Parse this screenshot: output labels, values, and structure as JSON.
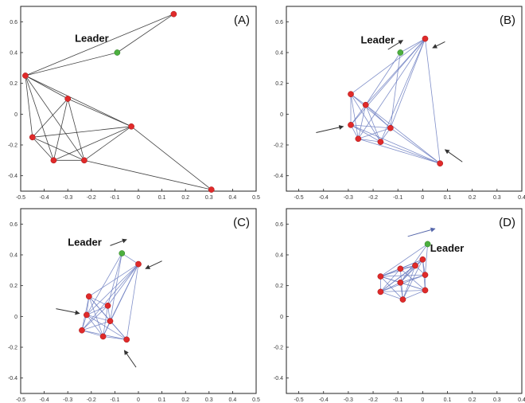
{
  "chart_data": [
    {
      "type": "scatter",
      "panel": "(A)",
      "leader_label": "Leader",
      "xlim": [
        -0.5,
        0.5
      ],
      "ylim": [
        -0.5,
        0.7
      ],
      "xticks": [
        "-0.5",
        "-0.4",
        "-0.3",
        "-0.2",
        "-0.1",
        "0",
        "0.1",
        "0.2",
        "0.3",
        "0.4",
        "0.5"
      ],
      "yticks": [
        "-0.4",
        "-0.2",
        "0",
        "0.2",
        "0.4",
        "0.6"
      ],
      "edge_color": "#222222",
      "leader": [
        -0.09,
        0.4
      ],
      "leader_label_pos": [
        -0.27,
        0.47
      ],
      "points": [
        [
          0.15,
          0.65
        ],
        [
          -0.48,
          0.25
        ],
        [
          -0.3,
          0.1
        ],
        [
          -0.03,
          -0.08
        ],
        [
          -0.45,
          -0.15
        ],
        [
          -0.36,
          -0.3
        ],
        [
          -0.23,
          -0.3
        ],
        [
          0.31,
          -0.49
        ]
      ],
      "edges": [
        [
          0,
          1
        ],
        [
          0,
          8
        ],
        [
          1,
          8
        ],
        [
          1,
          2
        ],
        [
          1,
          3
        ],
        [
          1,
          5
        ],
        [
          1,
          6
        ],
        [
          1,
          4
        ],
        [
          2,
          3
        ],
        [
          2,
          5
        ],
        [
          2,
          6
        ],
        [
          2,
          4
        ],
        [
          3,
          4
        ],
        [
          3,
          5
        ],
        [
          3,
          6
        ],
        [
          3,
          7
        ],
        [
          4,
          5
        ],
        [
          4,
          6
        ],
        [
          5,
          6
        ],
        [
          6,
          7
        ]
      ],
      "arrows": []
    },
    {
      "type": "scatter",
      "panel": "(B)",
      "leader_label": "Leader",
      "xlim": [
        -0.55,
        0.4
      ],
      "ylim": [
        -0.5,
        0.7
      ],
      "xticks": [
        "-0.5",
        "-0.4",
        "-0.3",
        "-0.2",
        "-0.1",
        "0",
        "0.1",
        "0.2",
        "0.3",
        "0.4"
      ],
      "yticks": [
        "-0.4",
        "-0.2",
        "0",
        "0.2",
        "0.4",
        "0.6"
      ],
      "edge_color": "#6a7bc0",
      "leader": [
        -0.09,
        0.4
      ],
      "leader_label_pos": [
        -0.25,
        0.46
      ],
      "points": [
        [
          0.01,
          0.49
        ],
        [
          -0.29,
          0.13
        ],
        [
          -0.23,
          0.06
        ],
        [
          -0.29,
          -0.07
        ],
        [
          -0.13,
          -0.09
        ],
        [
          -0.26,
          -0.16
        ],
        [
          -0.17,
          -0.18
        ],
        [
          0.07,
          -0.32
        ]
      ],
      "edges": [
        [
          0,
          1
        ],
        [
          0,
          2
        ],
        [
          0,
          3
        ],
        [
          0,
          4
        ],
        [
          0,
          5
        ],
        [
          0,
          6
        ],
        [
          0,
          7
        ],
        [
          0,
          8
        ],
        [
          1,
          2
        ],
        [
          1,
          3
        ],
        [
          1,
          4
        ],
        [
          1,
          5
        ],
        [
          1,
          6
        ],
        [
          2,
          3
        ],
        [
          2,
          4
        ],
        [
          2,
          5
        ],
        [
          2,
          6
        ],
        [
          2,
          7
        ],
        [
          3,
          4
        ],
        [
          3,
          5
        ],
        [
          3,
          6
        ],
        [
          3,
          7
        ],
        [
          4,
          5
        ],
        [
          4,
          6
        ],
        [
          4,
          7
        ],
        [
          5,
          6
        ],
        [
          5,
          7
        ],
        [
          6,
          7
        ],
        [
          8,
          2
        ],
        [
          8,
          4
        ]
      ],
      "arrows": [
        [
          [
            -0.14,
            0.42
          ],
          [
            -0.08,
            0.48
          ]
        ],
        [
          [
            0.09,
            0.47
          ],
          [
            0.04,
            0.43
          ]
        ],
        [
          [
            -0.43,
            -0.12
          ],
          [
            -0.32,
            -0.08
          ]
        ],
        [
          [
            0.16,
            -0.31
          ],
          [
            0.09,
            -0.23
          ]
        ]
      ]
    },
    {
      "type": "scatter",
      "panel": "(C)",
      "leader_label": "Leader",
      "xlim": [
        -0.5,
        0.5
      ],
      "ylim": [
        -0.5,
        0.7
      ],
      "xticks": [
        "-0.5",
        "-0.4",
        "-0.3",
        "-0.2",
        "-0.1",
        "0",
        "0.1",
        "0.2",
        "0.3",
        "0.4",
        "0.5"
      ],
      "yticks": [
        "-0.4",
        "-0.2",
        "0",
        "0.2",
        "0.4",
        "0.6"
      ],
      "edge_color": "#6a7bc0",
      "leader": [
        -0.07,
        0.41
      ],
      "leader_label_pos": [
        -0.3,
        0.46
      ],
      "points": [
        [
          0.0,
          0.34
        ],
        [
          -0.21,
          0.13
        ],
        [
          -0.22,
          0.01
        ],
        [
          -0.13,
          0.07
        ],
        [
          -0.12,
          -0.03
        ],
        [
          -0.24,
          -0.09
        ],
        [
          -0.15,
          -0.13
        ],
        [
          -0.05,
          -0.15
        ]
      ],
      "edges": [
        [
          0,
          1
        ],
        [
          0,
          2
        ],
        [
          0,
          3
        ],
        [
          0,
          4
        ],
        [
          0,
          5
        ],
        [
          0,
          6
        ],
        [
          0,
          7
        ],
        [
          0,
          8
        ],
        [
          1,
          2
        ],
        [
          1,
          3
        ],
        [
          1,
          4
        ],
        [
          1,
          5
        ],
        [
          1,
          6
        ],
        [
          1,
          7
        ],
        [
          2,
          3
        ],
        [
          2,
          4
        ],
        [
          2,
          5
        ],
        [
          2,
          6
        ],
        [
          2,
          7
        ],
        [
          3,
          4
        ],
        [
          3,
          5
        ],
        [
          3,
          6
        ],
        [
          4,
          5
        ],
        [
          4,
          6
        ],
        [
          4,
          7
        ],
        [
          5,
          6
        ],
        [
          5,
          7
        ],
        [
          6,
          7
        ],
        [
          8,
          2
        ],
        [
          8,
          3
        ],
        [
          8,
          4
        ]
      ],
      "arrows": [
        [
          [
            -0.12,
            0.46
          ],
          [
            -0.05,
            0.5
          ]
        ],
        [
          [
            0.1,
            0.36
          ],
          [
            0.03,
            0.31
          ]
        ],
        [
          [
            -0.35,
            0.05
          ],
          [
            -0.25,
            0.02
          ]
        ],
        [
          [
            -0.01,
            -0.33
          ],
          [
            -0.06,
            -0.22
          ]
        ]
      ]
    },
    {
      "type": "scatter",
      "panel": "(D)",
      "leader_label": "Leader",
      "xlim": [
        -0.55,
        0.4
      ],
      "ylim": [
        -0.5,
        0.7
      ],
      "xticks": [
        "-0.5",
        "-0.4",
        "-0.3",
        "-0.2",
        "-0.1",
        "0",
        "0.1",
        "0.2",
        "0.3",
        "0.4"
      ],
      "yticks": [
        "-0.4",
        "-0.2",
        "0",
        "0.2",
        "0.4",
        "0.6"
      ],
      "edge_color": "#6a7bc0",
      "leader": [
        0.02,
        0.47
      ],
      "leader_label_pos": [
        0.03,
        0.42
      ],
      "points": [
        [
          0.0,
          0.37
        ],
        [
          -0.17,
          0.26
        ],
        [
          -0.09,
          0.31
        ],
        [
          -0.03,
          0.33
        ],
        [
          0.01,
          0.27
        ],
        [
          -0.09,
          0.22
        ],
        [
          -0.17,
          0.16
        ],
        [
          -0.08,
          0.11
        ],
        [
          0.01,
          0.17
        ]
      ],
      "edges": [
        [
          0,
          1
        ],
        [
          0,
          2
        ],
        [
          0,
          3
        ],
        [
          0,
          4
        ],
        [
          0,
          5
        ],
        [
          0,
          6
        ],
        [
          0,
          7
        ],
        [
          0,
          8
        ],
        [
          1,
          2
        ],
        [
          1,
          3
        ],
        [
          1,
          4
        ],
        [
          1,
          5
        ],
        [
          1,
          6
        ],
        [
          1,
          7
        ],
        [
          1,
          8
        ],
        [
          2,
          3
        ],
        [
          2,
          6
        ],
        [
          2,
          7
        ],
        [
          2,
          8
        ],
        [
          3,
          4
        ],
        [
          3,
          5
        ],
        [
          3,
          6
        ],
        [
          3,
          7
        ],
        [
          4,
          5
        ],
        [
          4,
          6
        ],
        [
          4,
          8
        ],
        [
          5,
          6
        ],
        [
          5,
          7
        ],
        [
          5,
          8
        ],
        [
          6,
          7
        ],
        [
          6,
          8
        ],
        [
          7,
          8
        ],
        [
          9,
          1
        ],
        [
          9,
          4
        ],
        [
          9,
          5
        ],
        [
          9,
          9
        ]
      ],
      "arrows": [
        [
          [
            -0.06,
            0.52
          ],
          [
            0.05,
            0.57
          ]
        ]
      ]
    }
  ],
  "colors": {
    "node": "#e02a2a",
    "leader_node": "#4caf3f",
    "arrow": "#333333",
    "arrow_blue": "#5566aa",
    "axis": "#222222"
  }
}
